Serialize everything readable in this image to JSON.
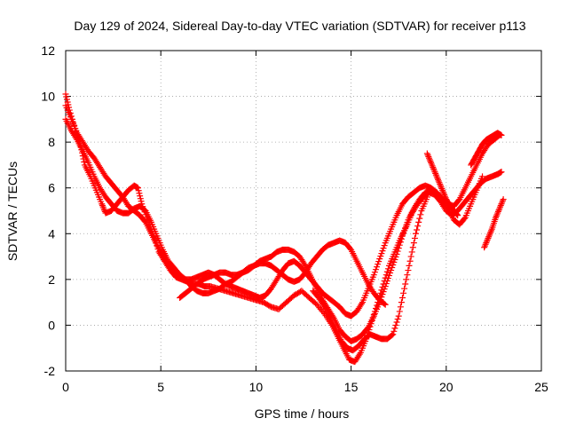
{
  "chart_data": {
    "type": "scatter",
    "title": "Day 129 of 2024, Sidereal Day-to-day VTEC variation (SDTVAR) for receiver p113",
    "xlabel": "GPS time / hours",
    "ylabel": "SDTVAR / TECUs",
    "xlim": [
      0,
      25
    ],
    "ylim": [
      -2,
      12
    ],
    "xticks": [
      "0",
      "5",
      "10",
      "15",
      "20",
      "25"
    ],
    "yticks": [
      "-2",
      "0",
      "2",
      "4",
      "6",
      "8",
      "10",
      "12"
    ],
    "grid": true,
    "marker": "plus",
    "marker_color": "#ff0000",
    "series": [
      {
        "x": [
          0.0,
          0.2,
          0.5,
          0.8,
          1.0,
          1.3,
          1.6,
          1.9,
          2.1,
          2.4,
          2.7,
          3.0,
          3.3,
          3.6,
          3.8,
          4.0,
          4.3,
          4.6,
          4.9,
          5.2,
          5.5,
          5.8,
          6.1,
          6.4,
          6.7,
          7.0,
          7.3,
          7.6,
          8.0,
          8.4,
          8.8,
          9.2,
          9.6,
          10.0,
          10.4,
          10.8,
          11.2,
          11.6,
          12.0,
          12.4,
          12.8,
          13.2,
          13.6,
          14.0,
          14.3,
          14.6,
          14.9,
          15.2,
          15.5,
          15.8,
          16.1,
          16.4,
          16.7,
          17.0,
          17.3,
          17.6,
          17.9,
          18.2,
          18.5,
          18.8,
          19.1,
          19.4,
          19.7,
          20.0,
          20.3,
          20.6,
          20.9,
          21.2,
          21.5,
          21.8,
          22.1,
          22.4,
          22.7,
          22.9
        ],
        "y": [
          10.1,
          9.4,
          8.6,
          7.8,
          7.0,
          6.5,
          5.9,
          5.3,
          4.9,
          5.0,
          5.3,
          5.6,
          5.9,
          6.1,
          6.0,
          5.3,
          4.6,
          4.0,
          3.2,
          2.8,
          2.4,
          2.1,
          2.0,
          1.9,
          1.8,
          1.8,
          1.7,
          1.7,
          1.6,
          1.5,
          1.4,
          1.3,
          1.2,
          1.1,
          1.0,
          0.8,
          0.7,
          1.0,
          1.3,
          1.5,
          1.2,
          0.9,
          0.5,
          0.0,
          -0.5,
          -1.0,
          -1.5,
          -1.6,
          -1.2,
          -0.6,
          0.2,
          1.0,
          1.8,
          2.6,
          3.2,
          3.8,
          4.3,
          4.9,
          5.3,
          5.6,
          5.8,
          5.7,
          5.4,
          5.0,
          4.8,
          5.0,
          5.3,
          5.6,
          5.9,
          6.2,
          6.4,
          6.5,
          6.6,
          6.7
        ]
      },
      {
        "x": [
          0.0,
          0.3,
          0.6,
          0.9,
          1.2,
          1.5,
          1.8,
          2.1,
          2.4,
          2.7,
          3.0,
          3.3,
          3.6,
          3.9,
          4.2,
          4.5,
          4.8,
          5.1,
          5.4,
          5.7,
          6.0,
          6.3,
          6.6,
          6.9,
          7.2,
          7.5,
          7.8,
          8.1,
          8.4,
          8.7,
          9.0,
          9.3,
          9.6,
          9.9,
          10.2,
          10.5,
          10.8,
          11.1,
          11.4,
          11.7,
          12.0,
          12.3,
          12.6,
          12.9,
          13.2,
          13.5,
          13.8,
          14.1,
          14.4,
          14.7,
          15.0,
          15.3,
          15.6,
          15.9,
          16.2,
          16.5,
          16.8,
          17.1,
          17.4,
          17.7,
          18.0,
          18.3,
          18.6,
          18.9,
          19.2,
          19.5,
          19.8,
          20.1,
          20.4,
          20.7,
          21.0,
          21.3,
          21.6,
          21.9,
          22.2,
          22.5,
          22.8
        ],
        "y": [
          9.6,
          9.0,
          8.4,
          8.0,
          7.6,
          7.3,
          6.9,
          6.5,
          6.2,
          5.9,
          5.6,
          5.2,
          5.0,
          4.8,
          4.5,
          4.0,
          3.5,
          3.0,
          2.6,
          2.3,
          2.1,
          2.0,
          2.0,
          2.1,
          2.2,
          2.3,
          2.2,
          2.0,
          1.8,
          1.7,
          1.6,
          1.5,
          1.4,
          1.3,
          1.2,
          1.3,
          1.6,
          2.0,
          2.4,
          2.7,
          2.8,
          2.6,
          2.3,
          2.0,
          1.7,
          1.4,
          1.2,
          1.0,
          0.8,
          0.5,
          0.4,
          0.6,
          1.0,
          1.6,
          2.2,
          2.9,
          3.6,
          4.2,
          4.8,
          5.3,
          5.6,
          5.8,
          6.0,
          6.1,
          6.0,
          5.8,
          5.5,
          5.3,
          5.2,
          5.5,
          6.0,
          6.5,
          7.0,
          7.5,
          7.9,
          8.1,
          8.3
        ]
      },
      {
        "x": [
          0.0,
          0.3,
          0.6,
          0.9,
          1.2,
          1.5,
          1.8,
          2.1,
          2.4,
          2.7,
          3.0,
          3.3,
          3.6,
          3.9,
          4.2,
          4.5,
          4.8,
          5.1,
          5.4,
          5.7,
          6.0,
          6.3,
          6.6,
          6.9,
          7.2,
          7.5,
          7.8,
          8.1,
          8.4,
          8.7,
          9.0,
          9.3,
          9.6,
          9.9,
          10.2,
          10.5,
          10.8,
          11.1,
          11.4,
          11.7,
          12.0,
          12.3,
          12.6,
          12.9,
          13.2,
          13.5,
          13.8,
          14.1,
          14.4,
          14.7,
          15.0,
          15.3,
          15.6,
          15.9,
          16.2,
          16.5,
          16.8,
          17.1,
          17.4,
          17.7,
          18.0,
          18.3,
          18.6,
          18.9,
          19.2,
          19.5,
          19.8,
          20.1,
          20.4,
          20.7,
          21.0,
          21.3,
          21.6,
          21.9
        ],
        "y": [
          9.0,
          8.5,
          8.1,
          7.6,
          7.1,
          6.5,
          6.0,
          5.6,
          5.3,
          5.0,
          4.9,
          4.9,
          5.1,
          5.2,
          5.0,
          4.5,
          3.9,
          3.3,
          2.8,
          2.5,
          2.2,
          2.0,
          1.7,
          1.5,
          1.4,
          1.4,
          1.5,
          1.6,
          1.8,
          1.9,
          2.1,
          2.3,
          2.5,
          2.6,
          2.8,
          2.9,
          3.0,
          3.2,
          3.3,
          3.3,
          3.2,
          3.0,
          2.6,
          2.1,
          1.6,
          1.1,
          0.7,
          0.3,
          -0.2,
          -0.5,
          -0.7,
          -0.6,
          -0.4,
          -0.1,
          0.4,
          1.0,
          1.7,
          2.4,
          3.1,
          3.9,
          4.6,
          5.1,
          5.5,
          5.8,
          5.9,
          5.8,
          5.5,
          5.1,
          4.6,
          4.4,
          4.7,
          5.3,
          5.9,
          6.5
        ]
      },
      {
        "x": [
          6.0,
          6.3,
          6.6,
          6.9,
          7.2,
          7.5,
          7.8,
          8.1,
          8.4,
          8.7,
          9.0,
          9.3,
          9.6,
          9.9,
          10.2,
          10.5,
          10.8,
          11.1,
          11.4,
          11.7,
          12.0,
          12.3,
          12.6,
          12.9,
          13.2,
          13.5,
          13.8,
          14.1,
          14.4,
          14.7,
          15.0,
          15.3,
          15.6,
          15.9,
          16.2,
          16.5,
          16.8
        ],
        "y": [
          1.2,
          1.4,
          1.6,
          1.8,
          2.0,
          2.1,
          2.2,
          2.3,
          2.3,
          2.2,
          2.2,
          2.3,
          2.4,
          2.6,
          2.7,
          2.7,
          2.6,
          2.4,
          2.2,
          2.0,
          1.9,
          2.0,
          2.3,
          2.7,
          3.0,
          3.3,
          3.5,
          3.6,
          3.7,
          3.6,
          3.3,
          2.8,
          2.3,
          1.8,
          1.4,
          1.1,
          0.9
        ]
      },
      {
        "x": [
          13.0,
          13.3,
          13.6,
          13.9,
          14.2,
          14.5,
          14.8,
          15.1,
          15.4,
          15.7,
          16.0,
          16.3,
          16.6,
          16.9,
          17.2,
          17.5,
          17.8,
          18.1,
          18.4,
          18.7,
          19.0
        ],
        "y": [
          1.5,
          1.2,
          0.8,
          0.3,
          -0.2,
          -0.7,
          -1.0,
          -1.1,
          -0.9,
          -0.6,
          -0.4,
          -0.5,
          -0.6,
          -0.6,
          -0.4,
          0.4,
          1.6,
          2.8,
          4.0,
          5.0,
          5.6
        ]
      },
      {
        "x": [
          19.0,
          19.2,
          19.4,
          19.6,
          19.8,
          20.0,
          20.2,
          20.4,
          20.6
        ],
        "y": [
          7.5,
          7.1,
          6.7,
          6.3,
          5.9,
          5.5,
          5.2,
          5.0,
          4.8
        ]
      },
      {
        "x": [
          21.3,
          21.5,
          21.7,
          21.9,
          22.1,
          22.3,
          22.5,
          22.7,
          22.9
        ],
        "y": [
          7.0,
          7.3,
          7.6,
          7.9,
          8.1,
          8.2,
          8.3,
          8.4,
          8.3
        ]
      },
      {
        "x": [
          22.0,
          22.2,
          22.4,
          22.6,
          22.8,
          23.0
        ],
        "y": [
          3.4,
          3.8,
          4.2,
          4.7,
          5.1,
          5.5
        ]
      }
    ]
  }
}
